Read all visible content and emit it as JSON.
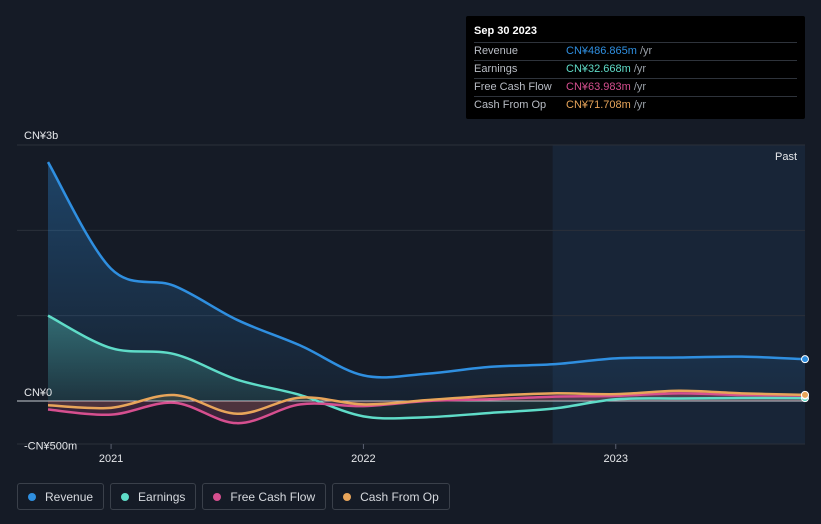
{
  "tooltip": {
    "date": "Sep 30 2023",
    "rows": [
      {
        "label": "Revenue",
        "value": "CN¥486.865m",
        "unit": "/yr",
        "color": "#2f8fe0"
      },
      {
        "label": "Earnings",
        "value": "CN¥32.668m",
        "unit": "/yr",
        "color": "#5fdcc8"
      },
      {
        "label": "Free Cash Flow",
        "value": "CN¥63.983m",
        "unit": "/yr",
        "color": "#d64f8f"
      },
      {
        "label": "Cash From Op",
        "value": "CN¥71.708m",
        "unit": "/yr",
        "color": "#e8a55a"
      }
    ]
  },
  "past_label": "Past",
  "legend": [
    {
      "label": "Revenue",
      "color": "#2f8fe0"
    },
    {
      "label": "Earnings",
      "color": "#5fdcc8"
    },
    {
      "label": "Free Cash Flow",
      "color": "#d64f8f"
    },
    {
      "label": "Cash From Op",
      "color": "#e8a55a"
    }
  ],
  "chart_data": {
    "type": "area",
    "y_unit": "CN¥m",
    "ylim": [
      -500,
      3000
    ],
    "y_tick_labels": [
      {
        "value": 3000,
        "label": "CN¥3b"
      },
      {
        "value": 0,
        "label": "CN¥0"
      },
      {
        "value": -500,
        "label": "-CN¥500m"
      }
    ],
    "x_ticks": [
      2021,
      2022,
      2023
    ],
    "xlim": [
      2020.75,
      2023.75
    ],
    "past_region_start": 2022.75,
    "x": [
      2020.75,
      2021.0,
      2021.25,
      2021.5,
      2021.75,
      2022.0,
      2022.25,
      2022.5,
      2022.75,
      2023.0,
      2023.25,
      2023.5,
      2023.75
    ],
    "series": [
      {
        "name": "Revenue",
        "color": "#2f8fe0",
        "values": [
          2800,
          1550,
          1350,
          950,
          650,
          300,
          320,
          400,
          430,
          500,
          510,
          520,
          490
        ]
      },
      {
        "name": "Earnings",
        "color": "#5fdcc8",
        "values": [
          1000,
          620,
          550,
          250,
          70,
          -180,
          -190,
          -140,
          -90,
          20,
          30,
          35,
          33
        ]
      },
      {
        "name": "Free Cash Flow",
        "color": "#d64f8f",
        "values": [
          -100,
          -160,
          -20,
          -260,
          -40,
          -60,
          0,
          20,
          50,
          60,
          90,
          70,
          64
        ]
      },
      {
        "name": "Cash From Op",
        "color": "#e8a55a",
        "values": [
          -50,
          -80,
          70,
          -150,
          40,
          -40,
          10,
          60,
          90,
          80,
          120,
          90,
          72
        ]
      }
    ]
  }
}
